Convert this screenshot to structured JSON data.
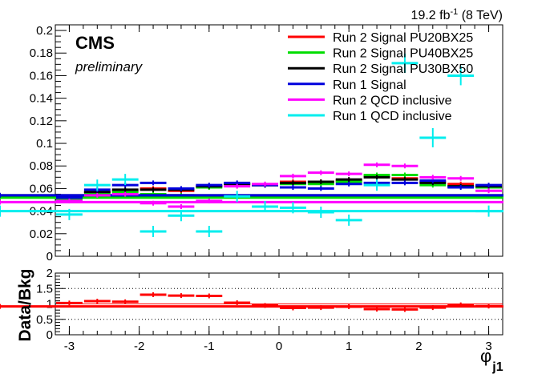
{
  "header": {
    "lumi_value": "19.2 fb",
    "lumi_exp": "-1",
    "lumi_energy": " (8 TeV)"
  },
  "cms_label": "CMS",
  "prelim_label": "preliminary",
  "chart_data": [
    {
      "type": "line",
      "panel": "main",
      "ylim": [
        0,
        0.205
      ],
      "xlim": [
        -3.2,
        3.2
      ],
      "ytick_labels": [
        "0",
        "0.02",
        "0.04",
        "0.06",
        "0.08",
        "0.1",
        "0.12",
        "0.14",
        "0.16",
        "0.18",
        "0.2"
      ],
      "ytick_values": [
        0,
        0.02,
        0.04,
        0.06,
        0.08,
        0.1,
        0.12,
        0.14,
        0.16,
        0.18,
        0.2
      ],
      "bin_edges": [
        -3.2,
        -2.8,
        -2.4,
        -2.0,
        -1.6,
        -1.2,
        -0.8,
        -0.4,
        0.0,
        0.4,
        0.8,
        1.2,
        1.6,
        2.0,
        2.4,
        2.8,
        3.2
      ],
      "legend_position": "top-right",
      "series": [
        {
          "name": "Run 2 Signal PU20BX25",
          "color": "#ff0000",
          "values": [
            0.051,
            0.057,
            0.058,
            0.06,
            0.058,
            0.062,
            0.064,
            0.063,
            0.066,
            0.066,
            0.067,
            0.071,
            0.069,
            0.066,
            0.064,
            0.062,
            0.053
          ]
        },
        {
          "name": "Run 2 Signal PU40BX25",
          "color": "#00dd00",
          "values": [
            0.05,
            0.056,
            0.057,
            0.055,
            0.054,
            0.061,
            0.064,
            0.063,
            0.064,
            0.064,
            0.066,
            0.072,
            0.072,
            0.063,
            0.062,
            0.061,
            0.052
          ]
        },
        {
          "name": "Run 2 Signal PU30BX50",
          "color": "#000000",
          "values": [
            0.052,
            0.057,
            0.059,
            0.059,
            0.059,
            0.062,
            0.064,
            0.063,
            0.065,
            0.066,
            0.068,
            0.07,
            0.068,
            0.065,
            0.062,
            0.062,
            0.054
          ]
        },
        {
          "name": "Run 1 Signal",
          "color": "#0000dd",
          "values": [
            0.052,
            0.059,
            0.063,
            0.065,
            0.06,
            0.063,
            0.065,
            0.063,
            0.061,
            0.06,
            0.064,
            0.065,
            0.065,
            0.067,
            0.061,
            0.063,
            0.054
          ]
        },
        {
          "name": "Run 2 QCD inclusive",
          "color": "#ff00ff",
          "values": [
            0.049,
            0.054,
            0.055,
            0.047,
            0.044,
            0.049,
            0.062,
            0.064,
            0.071,
            0.074,
            0.073,
            0.081,
            0.08,
            0.07,
            0.069,
            0.058,
            0.048
          ]
        },
        {
          "name": "Run 1 QCD inclusive",
          "color": "#00eeee",
          "values": [
            0.037,
            0.063,
            0.068,
            0.022,
            0.036,
            0.022,
            0.053,
            0.044,
            0.043,
            0.039,
            0.032,
            0.063,
            0.171,
            0.105,
            0.16,
            0.04,
            0.04
          ]
        }
      ]
    },
    {
      "type": "line",
      "panel": "ratio",
      "ylabel": "Data/Bkg",
      "xlabel": "φ",
      "xlabel_sub": "j1",
      "ylim": [
        0,
        2
      ],
      "xlim": [
        -3.2,
        3.2
      ],
      "ytick_labels": [
        "0",
        "0.5",
        "1",
        "1.5",
        "2"
      ],
      "ytick_values": [
        0,
        0.5,
        1,
        1.5,
        2
      ],
      "xtick_labels": [
        "-3",
        "-2",
        "-1",
        "0",
        "1",
        "2",
        "3"
      ],
      "xtick_values": [
        -3,
        -2,
        -1,
        0,
        1,
        2,
        3
      ],
      "dotted_lines": [
        0.5,
        1.5
      ],
      "reference_line": 1,
      "bin_edges": [
        -3.2,
        -2.8,
        -2.4,
        -2.0,
        -1.6,
        -1.2,
        -0.8,
        -0.4,
        0.0,
        0.4,
        0.8,
        1.2,
        1.6,
        2.0,
        2.4,
        2.8,
        3.2
      ],
      "series": [
        {
          "name": "",
          "color": "#ff0000",
          "values": [
            1.03,
            1.09,
            1.07,
            1.3,
            1.27,
            1.26,
            1.04,
            0.95,
            0.87,
            0.88,
            0.91,
            0.83,
            0.82,
            0.88,
            0.97,
            0.93,
            0.92
          ]
        }
      ]
    }
  ]
}
